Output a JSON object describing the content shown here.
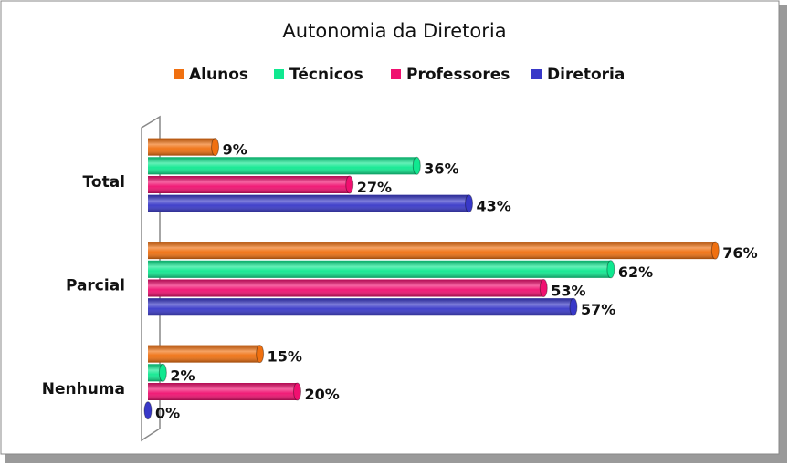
{
  "chart_data": {
    "type": "bar",
    "orientation": "horizontal",
    "title": "Autonomia da Diretoria",
    "categories": [
      "Total",
      "Parcial",
      "Nenhuma"
    ],
    "series": [
      {
        "name": "Alunos",
        "color": "#f07010",
        "values": [
          9,
          76,
          15
        ],
        "value_labels": [
          "9%",
          "76%",
          "15%"
        ]
      },
      {
        "name": "Técnicos",
        "color": "#10e890",
        "values": [
          36,
          62,
          2
        ],
        "value_labels": [
          "36%",
          "62%",
          "2%"
        ]
      },
      {
        "name": "Professores",
        "color": "#f01070",
        "values": [
          27,
          53,
          20
        ],
        "value_labels": [
          "27%",
          "53%",
          "20%"
        ]
      },
      {
        "name": "Diretoria",
        "color": "#3838c8",
        "values": [
          43,
          57,
          0
        ],
        "value_labels": [
          "43%",
          "57%",
          "0%"
        ]
      }
    ],
    "xlim": [
      0,
      80
    ]
  }
}
